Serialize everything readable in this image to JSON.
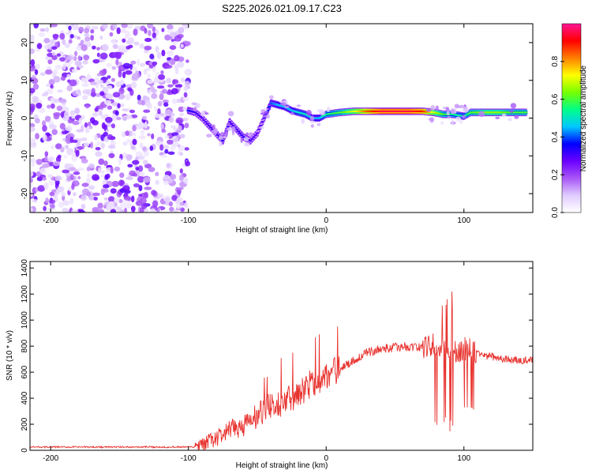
{
  "title": "S225.2026.021.09.17.C23",
  "colors": {
    "series_line": "#e8332f",
    "frame": "#000000",
    "background": "#ffffff"
  },
  "chart_data": [
    {
      "id": "spectrogram",
      "type": "heatmap",
      "xlabel": "Height of straight line (km)",
      "ylabel": "Frequency (Hz)",
      "xlim": [
        -215,
        150
      ],
      "ylim": [
        -25,
        25
      ],
      "xticks": [
        -200,
        -100,
        0,
        100
      ],
      "yticks": [
        -20,
        -10,
        0,
        10,
        20
      ],
      "colorbar": {
        "label": "Normalized spectral amplitude",
        "range": [
          0,
          1
        ],
        "ticks": [
          "0.0",
          "0.2",
          "0.4",
          "0.6",
          "0.8"
        ],
        "tick_values": [
          0,
          0.2,
          0.4,
          0.6,
          0.8
        ],
        "colormap": [
          "#ffffff",
          "#e0ccff",
          "#a855f7",
          "#6a00ff",
          "#0000ff",
          "#00c8ff",
          "#00ff88",
          "#77ff00",
          "#ffff00",
          "#ff7f00",
          "#ff0000",
          "#ff1493"
        ]
      },
      "noise_region_x": [
        -215,
        -100
      ],
      "signal_ridge": [
        {
          "x": -100,
          "y": 2,
          "v": 0.35
        },
        {
          "x": -95,
          "y": 1.5,
          "v": 0.3
        },
        {
          "x": -90,
          "y": 0,
          "v": 0.28
        },
        {
          "x": -85,
          "y": -2,
          "v": 0.3
        },
        {
          "x": -80,
          "y": -4,
          "v": 0.3
        },
        {
          "x": -75,
          "y": -6,
          "v": 0.32
        },
        {
          "x": -70,
          "y": -1,
          "v": 0.3
        },
        {
          "x": -65,
          "y": -3,
          "v": 0.3
        },
        {
          "x": -60,
          "y": -5,
          "v": 0.32
        },
        {
          "x": -55,
          "y": -6,
          "v": 0.3
        },
        {
          "x": -50,
          "y": -4,
          "v": 0.28
        },
        {
          "x": -45,
          "y": 0,
          "v": 0.3
        },
        {
          "x": -40,
          "y": 4,
          "v": 0.4
        },
        {
          "x": -35,
          "y": 3.5,
          "v": 0.45
        },
        {
          "x": -30,
          "y": 3,
          "v": 0.45
        },
        {
          "x": -25,
          "y": 2,
          "v": 0.45
        },
        {
          "x": -20,
          "y": 1.5,
          "v": 0.5
        },
        {
          "x": -15,
          "y": 1,
          "v": 0.5
        },
        {
          "x": -10,
          "y": 0,
          "v": 0.45
        },
        {
          "x": -5,
          "y": 0,
          "v": 0.45
        },
        {
          "x": 0,
          "y": 1,
          "v": 0.55
        },
        {
          "x": 10,
          "y": 1.5,
          "v": 0.6
        },
        {
          "x": 20,
          "y": 1.8,
          "v": 0.7
        },
        {
          "x": 30,
          "y": 1.8,
          "v": 0.85
        },
        {
          "x": 40,
          "y": 1.8,
          "v": 0.95
        },
        {
          "x": 50,
          "y": 1.8,
          "v": 0.95
        },
        {
          "x": 60,
          "y": 1.8,
          "v": 0.95
        },
        {
          "x": 70,
          "y": 1.8,
          "v": 0.9
        },
        {
          "x": 78,
          "y": 1.5,
          "v": 0.7
        },
        {
          "x": 85,
          "y": 1,
          "v": 0.6
        },
        {
          "x": 92,
          "y": 1,
          "v": 0.55
        },
        {
          "x": 100,
          "y": 0.5,
          "v": 0.5
        },
        {
          "x": 105,
          "y": 1.5,
          "v": 0.6
        },
        {
          "x": 115,
          "y": 1.5,
          "v": 0.65
        },
        {
          "x": 125,
          "y": 1.5,
          "v": 0.65
        },
        {
          "x": 135,
          "y": 1.5,
          "v": 0.6
        },
        {
          "x": 145,
          "y": 1.5,
          "v": 0.6
        }
      ]
    },
    {
      "id": "snr",
      "type": "line",
      "xlabel": "Height of straight line (km)",
      "ylabel": "SNR (10 * v/v)",
      "xlim": [
        -215,
        150
      ],
      "ylim": [
        0,
        1450
      ],
      "xticks": [
        -200,
        -100,
        0,
        100
      ],
      "yticks": [
        0,
        200,
        400,
        600,
        800,
        1000,
        1200,
        1400
      ],
      "series": [
        {
          "name": "SNR",
          "x": [
            -215,
            -190,
            -160,
            -130,
            -110,
            -100,
            -95,
            -90,
            -85,
            -80,
            -75,
            -70,
            -65,
            -60,
            -55,
            -50,
            -45,
            -40,
            -35,
            -30,
            -25,
            -20,
            -15,
            -10,
            -5,
            0,
            5,
            10,
            15,
            20,
            25,
            30,
            40,
            50,
            60,
            70,
            75,
            80,
            85,
            90,
            95,
            100,
            105,
            110,
            120,
            130,
            140,
            150
          ],
          "y": [
            25,
            25,
            25,
            25,
            25,
            25,
            25,
            35,
            70,
            90,
            120,
            150,
            170,
            190,
            220,
            260,
            300,
            330,
            350,
            390,
            400,
            440,
            480,
            520,
            540,
            570,
            600,
            630,
            660,
            690,
            720,
            750,
            780,
            790,
            795,
            790,
            800,
            820,
            800,
            770,
            750,
            780,
            780,
            740,
            720,
            700,
            690,
            690
          ]
        }
      ]
    }
  ]
}
